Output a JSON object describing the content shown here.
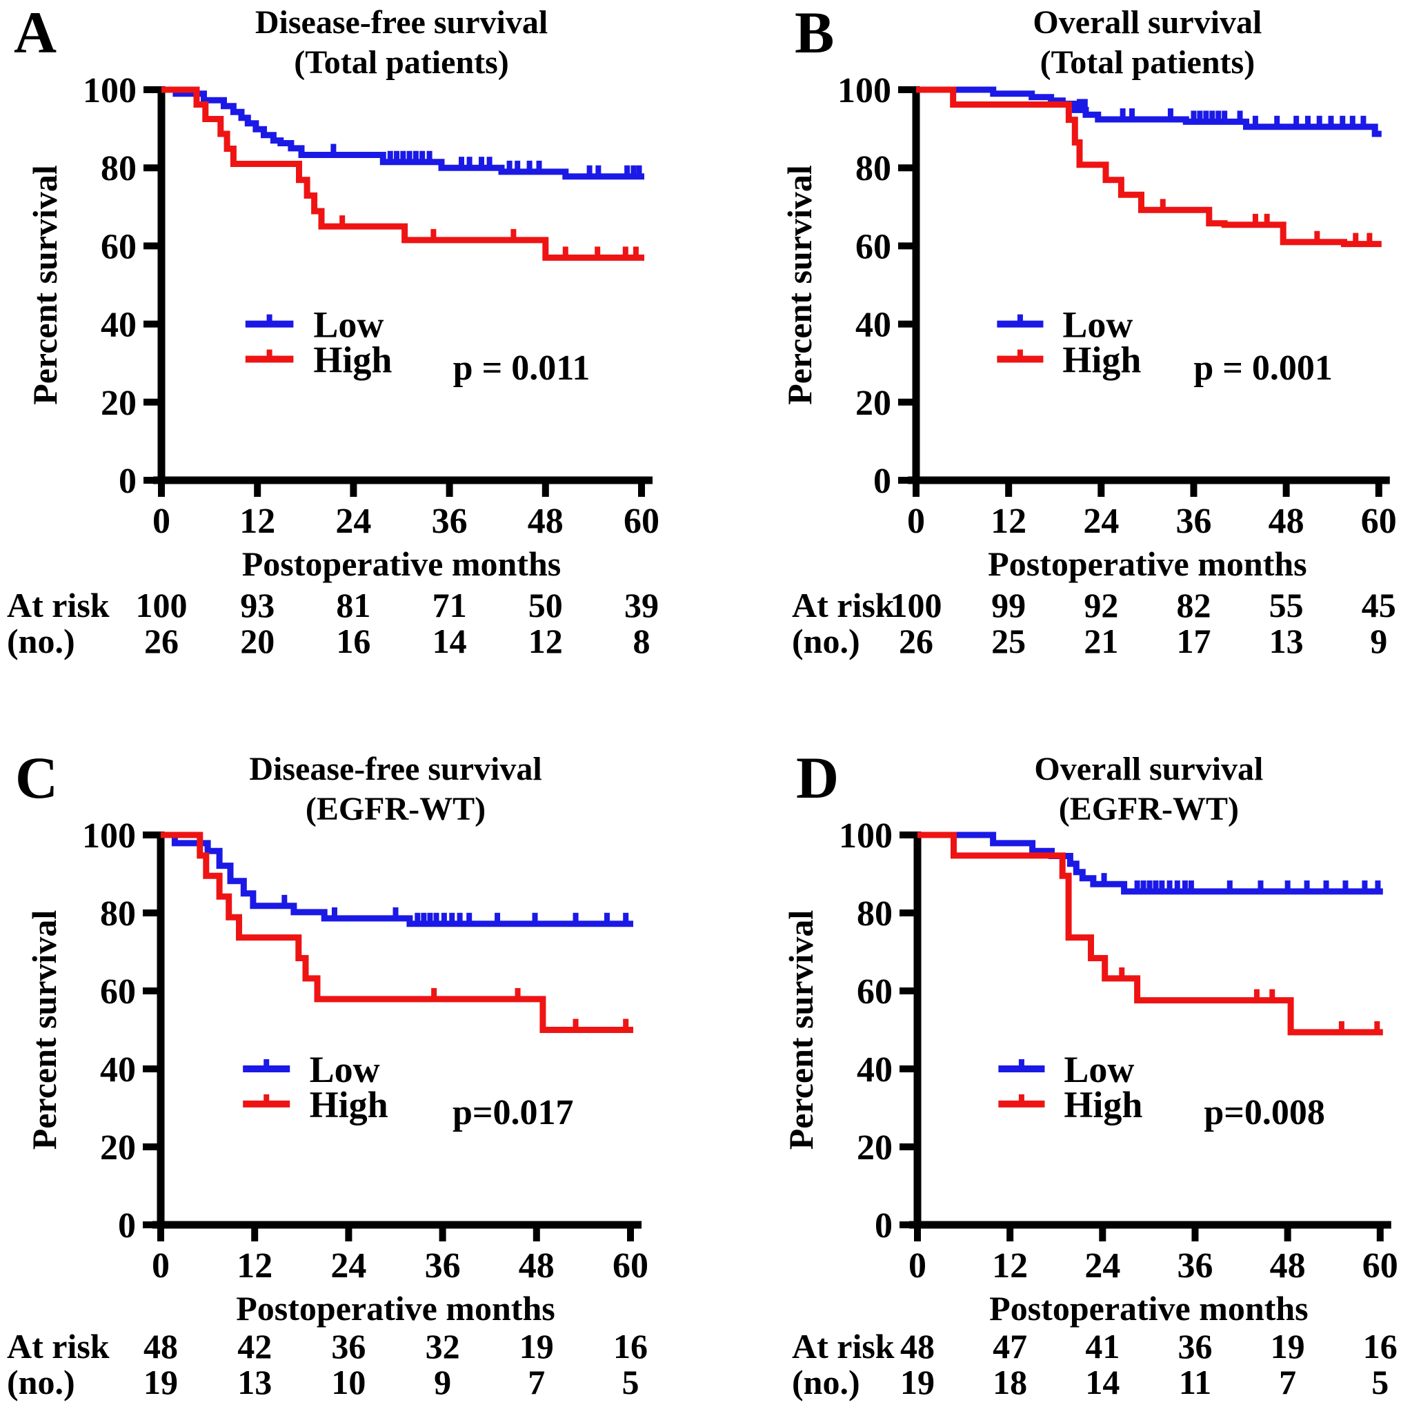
{
  "figure": {
    "x_axis_label": "Postoperative months",
    "y_axis_label": "Percent survival",
    "x_ticks": [
      0,
      12,
      24,
      36,
      48,
      60
    ],
    "y_ticks": [
      0,
      20,
      40,
      60,
      80,
      100
    ],
    "at_risk_label": [
      "At risk",
      "(no.)"
    ],
    "legend_labels": [
      "Low",
      "High"
    ],
    "colors": {
      "low": "#1b19e6",
      "high": "#ee1414",
      "axis": "#000000"
    }
  },
  "chart_data": [
    {
      "type": "line",
      "panel_letter": "A",
      "title": "Disease-free survival",
      "subtitle": "(Total patients)",
      "p_value": "p = 0.011",
      "xlabel": "Postoperative months",
      "ylabel": "Percent survival",
      "xlim": [
        0,
        60
      ],
      "ylim": [
        0,
        100
      ],
      "x_ticks": [
        0,
        12,
        24,
        36,
        48,
        60
      ],
      "y_ticks": [
        0,
        20,
        40,
        60,
        80,
        100
      ],
      "legend_position": "center-left",
      "at_risk_months": [
        0,
        12,
        24,
        36,
        48,
        60
      ],
      "series": [
        {
          "name": "Low",
          "color": "#1b19e6",
          "steps": [
            [
              0,
              100
            ],
            [
              1.8,
              99
            ],
            [
              5.3,
              97.3
            ],
            [
              7.8,
              95.8
            ],
            [
              9,
              94.3
            ],
            [
              10,
              92.8
            ],
            [
              10.8,
              91.4
            ],
            [
              11.8,
              89.9
            ],
            [
              12.8,
              88.4
            ],
            [
              14,
              87
            ],
            [
              14.9,
              86.3
            ],
            [
              16.2,
              85
            ],
            [
              17.5,
              83.3
            ],
            [
              27.7,
              81.5
            ],
            [
              35,
              80
            ],
            [
              42.5,
              79
            ],
            [
              50.5,
              77.8
            ]
          ],
          "censor_months": [
            21.5,
            28.6,
            29.4,
            30.2,
            31,
            31.8,
            32.6,
            33.5,
            37.5,
            38.5,
            40,
            41,
            43.5,
            44.5,
            46,
            47.2,
            53.5,
            54.6,
            58.2,
            59,
            59.7
          ],
          "at_risk": [
            100,
            93,
            81,
            71,
            50,
            39
          ]
        },
        {
          "name": "High",
          "color": "#ee1414",
          "steps": [
            [
              0,
              100
            ],
            [
              4.4,
              96.2
            ],
            [
              5.5,
              92.5
            ],
            [
              7.4,
              88.7
            ],
            [
              8.2,
              84.9
            ],
            [
              9,
              81
            ],
            [
              17.2,
              76.9
            ],
            [
              18.2,
              72.9
            ],
            [
              19.1,
              68.9
            ],
            [
              20,
              65
            ],
            [
              30.4,
              61.5
            ],
            [
              48,
              57
            ]
          ],
          "censor_months": [
            22.6,
            34,
            44,
            50.5,
            54.5,
            58,
            59.3
          ],
          "at_risk": [
            26,
            20,
            16,
            14,
            12,
            8
          ]
        }
      ]
    },
    {
      "type": "line",
      "panel_letter": "B",
      "title": "Overall survival",
      "subtitle": "(Total patients)",
      "p_value": "p = 0.001",
      "xlabel": "Postoperative months",
      "ylabel": "Percent survival",
      "xlim": [
        0,
        60
      ],
      "ylim": [
        0,
        100
      ],
      "x_ticks": [
        0,
        12,
        24,
        36,
        48,
        60
      ],
      "y_ticks": [
        0,
        20,
        40,
        60,
        80,
        100
      ],
      "legend_position": "center-left",
      "at_risk_months": [
        0,
        12,
        24,
        36,
        48,
        60
      ],
      "series": [
        {
          "name": "Low",
          "color": "#1b19e6",
          "steps": [
            [
              0,
              100
            ],
            [
              10,
              99
            ],
            [
              15,
              98.1
            ],
            [
              17.5,
              97.2
            ],
            [
              19,
              96.4
            ],
            [
              20.6,
              94.8
            ],
            [
              22,
              93.6
            ],
            [
              23.6,
              92.4
            ],
            [
              35,
              91.8
            ],
            [
              42.8,
              90.5
            ],
            [
              59.5,
              88.7
            ]
          ],
          "censor_months": [
            21.2,
            21.9,
            26.8,
            28,
            33,
            36,
            36.8,
            37.6,
            38.4,
            39.2,
            40,
            42,
            44,
            46.8,
            49.3,
            50.8,
            52.3,
            53.8,
            55.3,
            56.6,
            58
          ],
          "at_risk": [
            100,
            99,
            92,
            82,
            55,
            45
          ]
        },
        {
          "name": "High",
          "color": "#ee1414",
          "steps": [
            [
              0,
              100
            ],
            [
              4.8,
              96.2
            ],
            [
              19.8,
              92.3
            ],
            [
              20.6,
              86.5
            ],
            [
              21.2,
              80.8
            ],
            [
              24.6,
              76.9
            ],
            [
              26.6,
              73.1
            ],
            [
              29.2,
              69.2
            ],
            [
              38,
              65.8
            ],
            [
              40,
              65.4
            ],
            [
              47.6,
              61
            ],
            [
              55.5,
              60.5
            ]
          ],
          "censor_months": [
            32,
            44,
            45.5,
            52,
            57,
            58.8
          ],
          "at_risk": [
            26,
            25,
            21,
            17,
            13,
            9
          ]
        }
      ]
    },
    {
      "type": "line",
      "panel_letter": "C",
      "title": "Disease-free survival",
      "subtitle": "(EGFR-WT)",
      "p_value": "p=0.017",
      "xlabel": "Postoperative months",
      "ylabel": "Percent survival",
      "xlim": [
        0,
        60
      ],
      "ylim": [
        0,
        100
      ],
      "x_ticks": [
        0,
        12,
        24,
        36,
        48,
        60
      ],
      "y_ticks": [
        0,
        20,
        40,
        60,
        80,
        100
      ],
      "legend_position": "center-left",
      "at_risk_months": [
        0,
        12,
        24,
        36,
        48,
        60
      ],
      "series": [
        {
          "name": "Low",
          "color": "#1b19e6",
          "steps": [
            [
              0,
              100
            ],
            [
              1.8,
              97.9
            ],
            [
              6,
              95.9
            ],
            [
              7.5,
              92.1
            ],
            [
              8.9,
              88.2
            ],
            [
              10.6,
              85
            ],
            [
              11.8,
              81.8
            ],
            [
              17,
              80.2
            ],
            [
              20.9,
              78.6
            ],
            [
              31.8,
              77.2
            ]
          ],
          "censor_months": [
            15.8,
            22.2,
            30,
            32.8,
            33.6,
            34.4,
            35.2,
            36.2,
            37.2,
            38.2,
            39.4,
            43,
            47.8,
            53,
            57,
            59.4
          ],
          "at_risk": [
            48,
            42,
            36,
            32,
            19,
            16
          ]
        },
        {
          "name": "High",
          "color": "#ee1414",
          "steps": [
            [
              0,
              100
            ],
            [
              5,
              94.7
            ],
            [
              5.8,
              89.5
            ],
            [
              7.5,
              84.2
            ],
            [
              8.7,
              78.9
            ],
            [
              10,
              73.7
            ],
            [
              17.6,
              68.4
            ],
            [
              18.5,
              63.2
            ],
            [
              20,
              57.9
            ],
            [
              48.8,
              50
            ]
          ],
          "censor_months": [
            34.9,
            45.6,
            53,
            59.4
          ],
          "at_risk": [
            19,
            13,
            10,
            9,
            7,
            5
          ]
        }
      ]
    },
    {
      "type": "line",
      "panel_letter": "D",
      "title": "Overall survival",
      "subtitle": "(EGFR-WT)",
      "p_value": "p=0.008",
      "xlabel": "Postoperative months",
      "ylabel": "Percent survival",
      "xlim": [
        0,
        60
      ],
      "ylim": [
        0,
        100
      ],
      "x_ticks": [
        0,
        12,
        24,
        36,
        48,
        60
      ],
      "y_ticks": [
        0,
        20,
        40,
        60,
        80,
        100
      ],
      "legend_position": "center-left",
      "at_risk_months": [
        0,
        12,
        24,
        36,
        48,
        60
      ],
      "series": [
        {
          "name": "Low",
          "color": "#1b19e6",
          "steps": [
            [
              0,
              100
            ],
            [
              9.8,
              97.9
            ],
            [
              14.9,
              95.9
            ],
            [
              17.4,
              94.6
            ],
            [
              19.8,
              92.6
            ],
            [
              20.6,
              90.5
            ],
            [
              21.4,
              88.9
            ],
            [
              22.8,
              87.4
            ],
            [
              26.8,
              85.5
            ]
          ],
          "censor_months": [
            24.2,
            28.5,
            29.3,
            30.1,
            30.9,
            31.7,
            32.7,
            33.7,
            34.7,
            35.5,
            40.5,
            44.5,
            48,
            50.5,
            53,
            55.5,
            58,
            59.7
          ],
          "at_risk": [
            48,
            47,
            41,
            36,
            19,
            16
          ]
        },
        {
          "name": "High",
          "color": "#ee1414",
          "steps": [
            [
              0,
              100
            ],
            [
              4.7,
              94.7
            ],
            [
              18.8,
              89.5
            ],
            [
              19.6,
              73.7
            ],
            [
              22.5,
              68.4
            ],
            [
              24.3,
              63.2
            ],
            [
              28.5,
              57.6
            ],
            [
              48.4,
              49.4
            ]
          ],
          "censor_months": [
            26.5,
            44,
            46,
            55,
            59.6
          ],
          "at_risk": [
            19,
            18,
            14,
            11,
            7,
            5
          ]
        }
      ]
    }
  ]
}
